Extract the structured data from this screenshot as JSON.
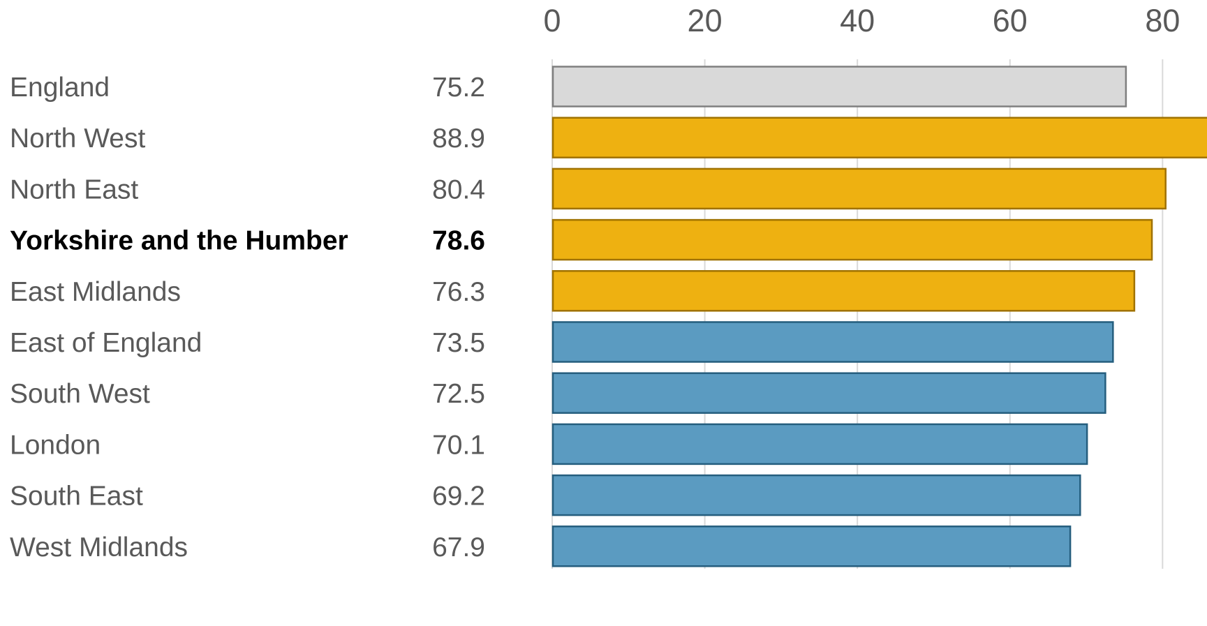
{
  "chart_data": {
    "type": "bar",
    "orientation": "horizontal",
    "categories": [
      "England",
      "North West",
      "North East",
      "Yorkshire and the Humber",
      "East Midlands",
      "East of England",
      "South West",
      "London",
      "South East",
      "West Midlands"
    ],
    "values": [
      75.2,
      88.9,
      80.4,
      78.6,
      76.3,
      73.5,
      72.5,
      70.1,
      69.2,
      67.9
    ],
    "value_labels": [
      "75.2",
      "88.9",
      "80.4",
      "78.6",
      "76.3",
      "73.5",
      "72.5",
      "70.1",
      "69.2",
      "67.9"
    ],
    "groups": [
      "reference",
      "above",
      "above",
      "above",
      "above",
      "below",
      "below",
      "below",
      "below",
      "below"
    ],
    "highlight_index": 3,
    "xticks": [
      0,
      20,
      40,
      60,
      80
    ],
    "xlim": [
      0,
      85
    ],
    "grid": true,
    "tick_position": "top",
    "title": "",
    "xlabel": "",
    "ylabel": "",
    "colors": {
      "reference_fill": "#d9d9d9",
      "reference_stroke": "#7f7f7f",
      "above_fill": "#eeb111",
      "above_stroke": "#a07200",
      "below_fill": "#5b9bc1",
      "below_stroke": "#255e7e",
      "grid": "#d9d9d9",
      "text": "#595959",
      "highlight_text": "#000000"
    }
  }
}
